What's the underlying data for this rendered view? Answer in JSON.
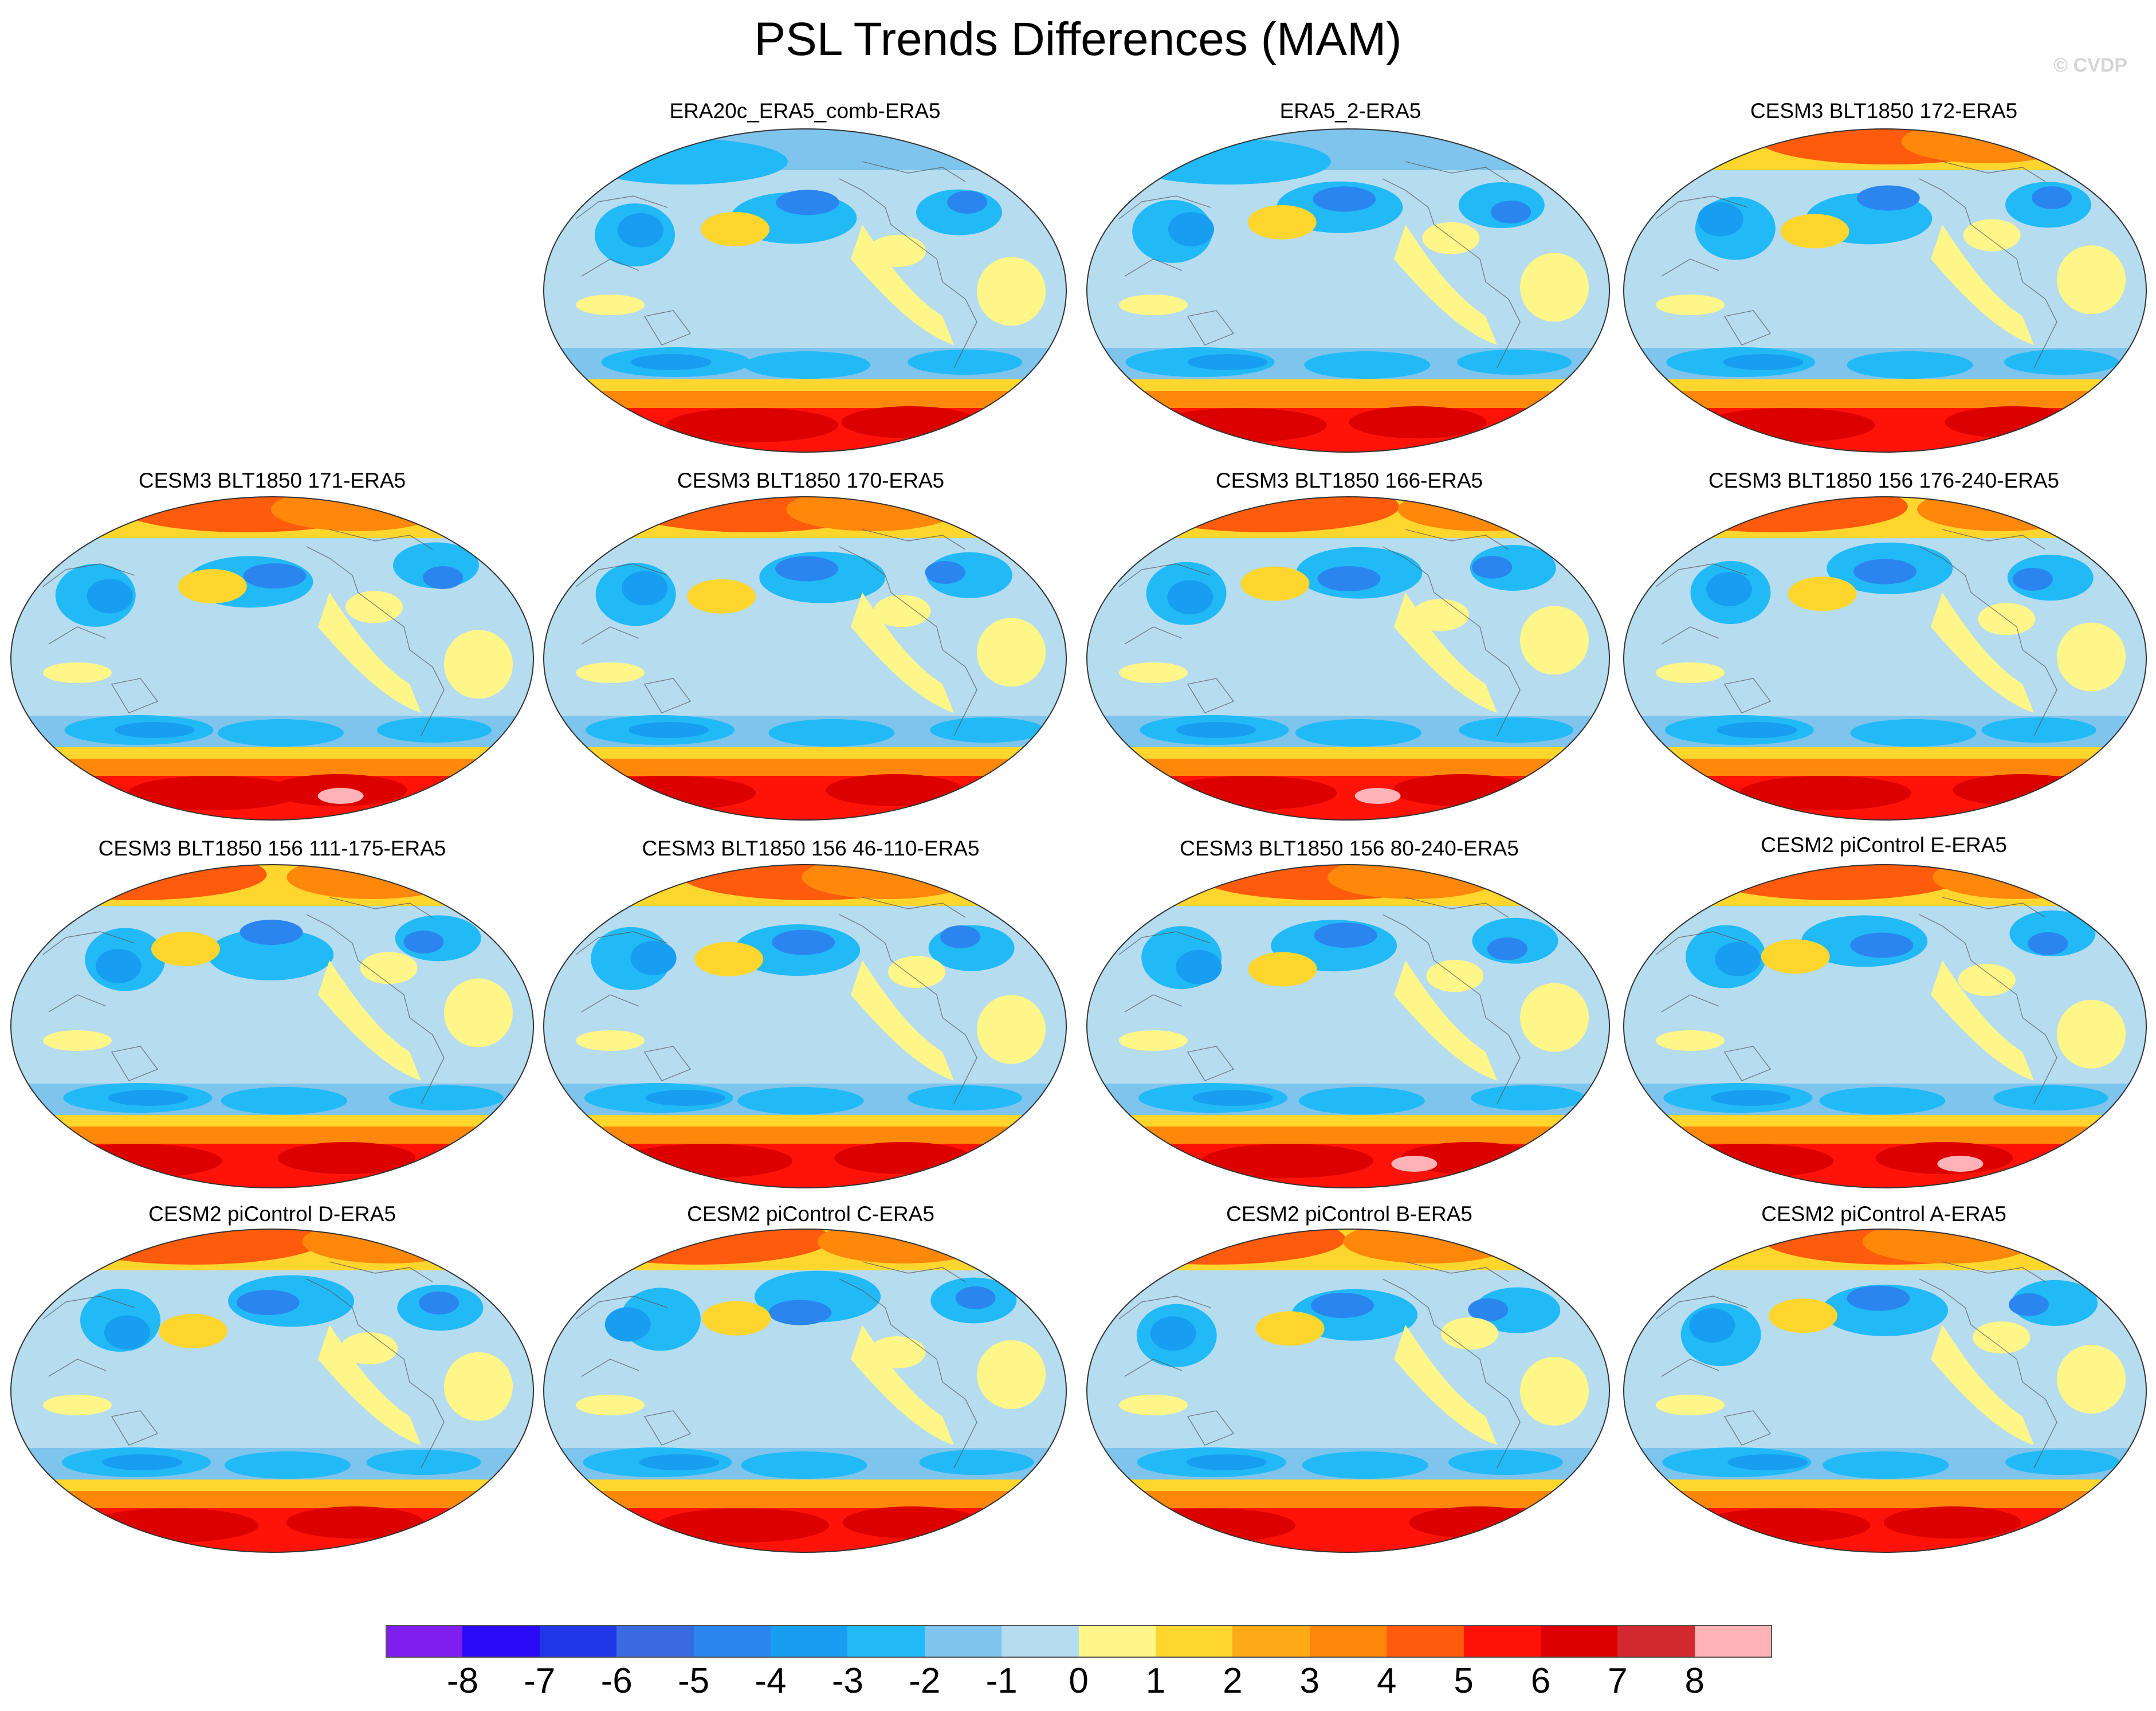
{
  "figure": {
    "title": "PSL Trends Differences (MAM)",
    "watermark": "© CVDP"
  },
  "panels": [
    {
      "id": "p1",
      "title": "ERA20c_ERA5_comb-ERA5"
    },
    {
      "id": "p2",
      "title": "ERA5_2-ERA5"
    },
    {
      "id": "p3",
      "title": "CESM3 BLT1850 172-ERA5"
    },
    {
      "id": "p4",
      "title": "CESM3 BLT1850 171-ERA5"
    },
    {
      "id": "p5",
      "title": "CESM3 BLT1850 170-ERA5"
    },
    {
      "id": "p6",
      "title": "CESM3 BLT1850 166-ERA5"
    },
    {
      "id": "p7",
      "title": "CESM3 BLT1850 156 176-240-ERA5"
    },
    {
      "id": "p8",
      "title": "CESM3 BLT1850 156 111-175-ERA5"
    },
    {
      "id": "p9",
      "title": "CESM3 BLT1850 156 46-110-ERA5"
    },
    {
      "id": "p10",
      "title": "CESM3 BLT1850 156 80-240-ERA5"
    },
    {
      "id": "p11",
      "title": "CESM2 piControl E-ERA5"
    },
    {
      "id": "p12",
      "title": "CESM2 piControl D-ERA5"
    },
    {
      "id": "p13",
      "title": "CESM2 piControl C-ERA5"
    },
    {
      "id": "p14",
      "title": "CESM2 piControl B-ERA5"
    },
    {
      "id": "p15",
      "title": "CESM2 piControl A-ERA5"
    }
  ],
  "colorbar": {
    "labels": [
      "-8",
      "-7",
      "-6",
      "-5",
      "-4",
      "-3",
      "-2",
      "-1",
      "0",
      "1",
      "2",
      "3",
      "4",
      "5",
      "6",
      "7",
      "8"
    ],
    "colors": [
      "#7f1fee",
      "#2a0af5",
      "#1f37e6",
      "#3a6ae0",
      "#2a86ee",
      "#189ef0",
      "#22baf6",
      "#7ec4ec",
      "#b6dcf0",
      "#fff68a",
      "#ffd62e",
      "#ffaa17",
      "#ff880b",
      "#ff5b0c",
      "#ff1308",
      "#dd0000",
      "#d1292d",
      "#ffb3b8"
    ]
  },
  "colors": {
    "ocean_base": "#b6dcf0",
    "land_outline": "#555555"
  }
}
